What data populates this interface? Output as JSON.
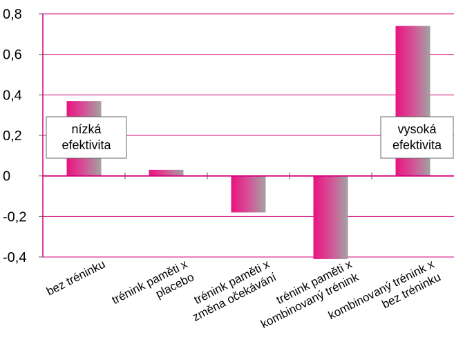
{
  "chart_data": {
    "type": "bar",
    "categories": [
      [
        "bez tréninku"
      ],
      [
        "trénink paměti x",
        "placebo"
      ],
      [
        "trénink paměti x",
        "změna očekávání"
      ],
      [
        "trénink paměti x",
        "kombinovaný trénink"
      ],
      [
        "kombinovaný trénink x",
        "bez tréninku"
      ]
    ],
    "values": [
      0.37,
      0.03,
      -0.18,
      -0.41,
      0.74
    ],
    "ylim": [
      -0.4,
      0.8
    ],
    "yticks": [
      "-0,4",
      "-0,2",
      "0",
      "0,2",
      "0,4",
      "0,6",
      "0,8"
    ],
    "ytick_values": [
      -0.4,
      -0.2,
      0,
      0.2,
      0.4,
      0.6,
      0.8
    ],
    "grid": true,
    "title": "",
    "xlabel": "",
    "ylabel": "",
    "annotations": [
      {
        "lines": [
          "nízká",
          "efektivita"
        ],
        "anchor": "category-1"
      },
      {
        "lines": [
          "vysoká",
          "efektivita"
        ],
        "anchor": "category-5"
      }
    ],
    "colors": {
      "grid": "#d4007a",
      "axis": "#d4007a",
      "bar_gradient_start": "#e8147f",
      "bar_gradient_mid": "#d84a95",
      "bar_gradient_end": "#a3a3a3",
      "box_border": "#666666"
    }
  }
}
